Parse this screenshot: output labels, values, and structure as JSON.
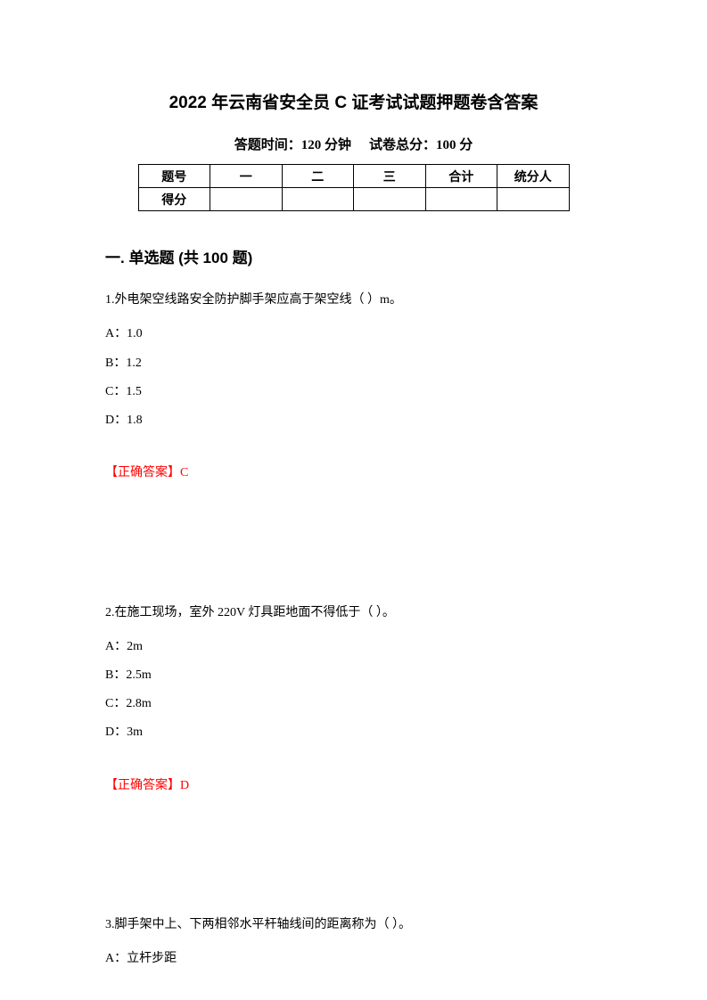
{
  "title": "2022 年云南省安全员 C 证考试试题押题卷含答案",
  "subtitle": {
    "time_label": "答题时间：",
    "time_value": "120 分钟",
    "score_label": "试卷总分：",
    "score_value": "100 分"
  },
  "score_table": {
    "headers": [
      "题号",
      "一",
      "二",
      "三",
      "合计",
      "统分人"
    ],
    "row_label": "得分"
  },
  "section_header": "一. 单选题 (共 100 题)",
  "questions": [
    {
      "number": "1.",
      "text": "外电架空线路安全防护脚手架应高于架空线（ ）m。",
      "options": [
        {
          "label": "A：",
          "text": "1.0"
        },
        {
          "label": "B：",
          "text": "1.2"
        },
        {
          "label": "C：",
          "text": "1.5"
        },
        {
          "label": "D：",
          "text": "1.8"
        }
      ],
      "answer_label": "【正确答案】",
      "answer": "C"
    },
    {
      "number": "2.",
      "text": "在施工现场，室外 220V 灯具距地面不得低于（ ）。",
      "options": [
        {
          "label": "A：",
          "text": "2m"
        },
        {
          "label": "B：",
          "text": "2.5m"
        },
        {
          "label": "C：",
          "text": "2.8m"
        },
        {
          "label": "D：",
          "text": "3m"
        }
      ],
      "answer_label": "【正确答案】",
      "answer": "D"
    },
    {
      "number": "3.",
      "text": "脚手架中上、下两相邻水平杆轴线间的距离称为（ ）。",
      "options": [
        {
          "label": "A：",
          "text": "立杆步距"
        }
      ]
    }
  ],
  "colors": {
    "text": "#000000",
    "answer": "#ff0000",
    "background": "#ffffff",
    "border": "#000000"
  },
  "typography": {
    "title_fontsize": 19,
    "subtitle_fontsize": 15,
    "body_fontsize": 14,
    "section_fontsize": 17
  }
}
